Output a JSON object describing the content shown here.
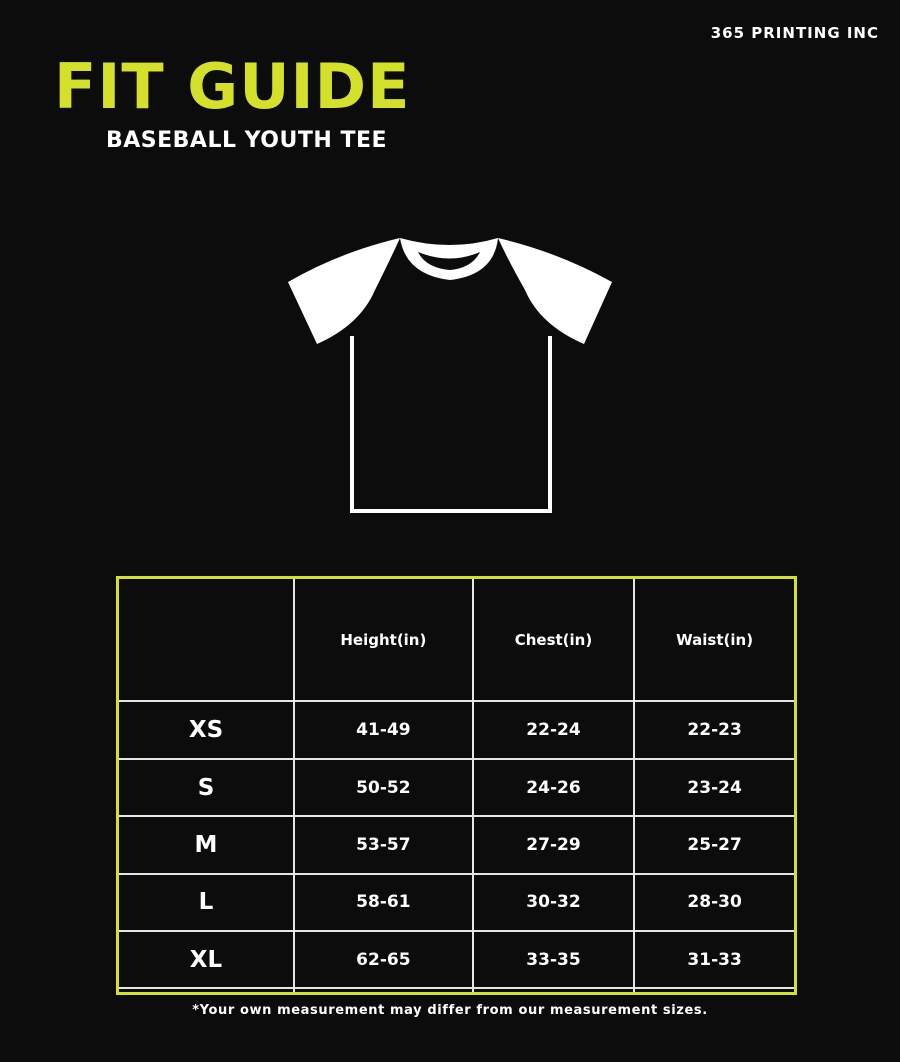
{
  "brand": "365 PRINTING INC",
  "title": "FIT GUIDE",
  "subtitle": "BASEBALL YOUTH TEE",
  "colors": {
    "accent": "#d4e02a",
    "background": "#0c0c0c",
    "text": "#ffffff"
  },
  "table": {
    "headers": [
      "",
      "Height(in)",
      "Chest(in)",
      "Waist(in)"
    ],
    "rows": [
      {
        "size": "XS",
        "height": "41-49",
        "chest": "22-24",
        "waist": "22-23"
      },
      {
        "size": "S",
        "height": "50-52",
        "chest": "24-26",
        "waist": "23-24"
      },
      {
        "size": "M",
        "height": "53-57",
        "chest": "27-29",
        "waist": "25-27"
      },
      {
        "size": "L",
        "height": "58-61",
        "chest": "30-32",
        "waist": "28-30"
      },
      {
        "size": "XL",
        "height": "62-65",
        "chest": "33-35",
        "waist": "31-33"
      },
      {
        "size": "",
        "height": "",
        "chest": "",
        "waist": ""
      }
    ]
  },
  "note": "*Your own measurement may differ from our measurement sizes."
}
